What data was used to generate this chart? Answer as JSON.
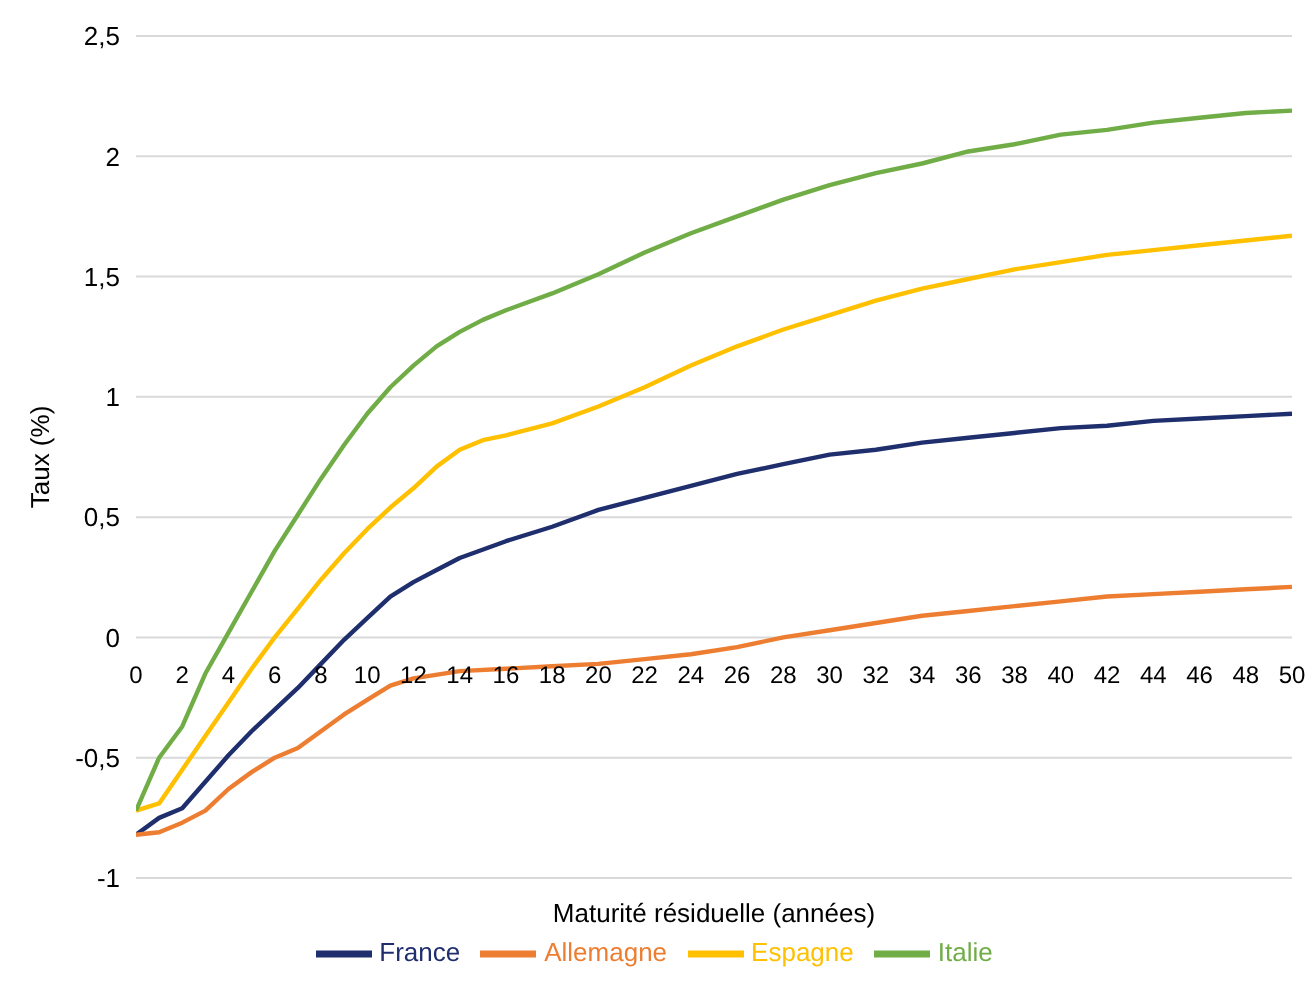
{
  "chart_data": {
    "type": "line",
    "xlabel": "Maturité résiduelle (années)",
    "ylabel": "Taux (%)",
    "xlim": [
      0,
      50
    ],
    "xticks": [
      0,
      2,
      4,
      6,
      8,
      10,
      12,
      14,
      16,
      18,
      20,
      22,
      24,
      26,
      28,
      30,
      32,
      34,
      36,
      38,
      40,
      42,
      44,
      46,
      48,
      50
    ],
    "ylim": [
      -1,
      2.5
    ],
    "yticks": [
      {
        "value": -1,
        "label": "-1"
      },
      {
        "value": -0.5,
        "label": "-0,5"
      },
      {
        "value": 0,
        "label": "0"
      },
      {
        "value": 0.5,
        "label": "0,5"
      },
      {
        "value": 1,
        "label": "1"
      },
      {
        "value": 1.5,
        "label": "1,5"
      },
      {
        "value": 2,
        "label": "2"
      },
      {
        "value": 2.5,
        "label": "2,5"
      }
    ],
    "grid": "y",
    "legend": "bottom",
    "marker": "none",
    "line_style": "solid",
    "series": [
      {
        "name": "France",
        "color": "#1f2f6e",
        "x": [
          0,
          1,
          2,
          3,
          4,
          5,
          6,
          7,
          8,
          9,
          10,
          11,
          12,
          13,
          14,
          16,
          18,
          20,
          22,
          24,
          26,
          28,
          30,
          32,
          34,
          36,
          38,
          40,
          42,
          44,
          46,
          48,
          50
        ],
        "values": [
          -0.82,
          -0.75,
          -0.71,
          -0.6,
          -0.49,
          -0.39,
          -0.3,
          -0.21,
          -0.11,
          -0.01,
          0.08,
          0.17,
          0.23,
          0.28,
          0.33,
          0.4,
          0.46,
          0.53,
          0.58,
          0.63,
          0.68,
          0.72,
          0.76,
          0.78,
          0.81,
          0.83,
          0.85,
          0.87,
          0.88,
          0.9,
          0.91,
          0.92,
          0.93
        ]
      },
      {
        "name": "Allemagne",
        "color": "#ed7d31",
        "x": [
          0,
          1,
          2,
          3,
          4,
          5,
          6,
          7,
          8,
          9,
          10,
          11,
          12,
          14,
          16,
          18,
          20,
          22,
          24,
          26,
          28,
          30,
          32,
          34,
          36,
          38,
          40,
          42,
          44,
          46,
          48,
          50
        ],
        "values": [
          -0.82,
          -0.81,
          -0.77,
          -0.72,
          -0.63,
          -0.56,
          -0.5,
          -0.46,
          -0.39,
          -0.32,
          -0.26,
          -0.2,
          -0.17,
          -0.14,
          -0.13,
          -0.12,
          -0.11,
          -0.09,
          -0.07,
          -0.04,
          0.0,
          0.03,
          0.06,
          0.09,
          0.11,
          0.13,
          0.15,
          0.17,
          0.18,
          0.19,
          0.2,
          0.21
        ]
      },
      {
        "name": "Espagne",
        "color": "#ffc000",
        "x": [
          0,
          1,
          2,
          3,
          4,
          5,
          6,
          7,
          8,
          9,
          10,
          11,
          12,
          13,
          14,
          15,
          16,
          18,
          20,
          22,
          24,
          26,
          28,
          30,
          32,
          34,
          36,
          38,
          40,
          42,
          44,
          46,
          48,
          50
        ],
        "values": [
          -0.72,
          -0.69,
          -0.55,
          -0.41,
          -0.27,
          -0.13,
          0.0,
          0.12,
          0.24,
          0.35,
          0.45,
          0.54,
          0.62,
          0.71,
          0.78,
          0.82,
          0.84,
          0.89,
          0.96,
          1.04,
          1.13,
          1.21,
          1.28,
          1.34,
          1.4,
          1.45,
          1.49,
          1.53,
          1.56,
          1.59,
          1.61,
          1.63,
          1.65,
          1.67
        ]
      },
      {
        "name": "Italie",
        "color": "#70ad47",
        "x": [
          0,
          1,
          2,
          3,
          4,
          5,
          6,
          7,
          8,
          9,
          10,
          11,
          12,
          13,
          14,
          15,
          16,
          18,
          20,
          22,
          24,
          26,
          28,
          30,
          32,
          34,
          36,
          38,
          40,
          42,
          44,
          46,
          48,
          50
        ],
        "values": [
          -0.72,
          -0.5,
          -0.37,
          -0.15,
          0.02,
          0.19,
          0.36,
          0.51,
          0.66,
          0.8,
          0.93,
          1.04,
          1.13,
          1.21,
          1.27,
          1.32,
          1.36,
          1.43,
          1.51,
          1.6,
          1.68,
          1.75,
          1.82,
          1.88,
          1.93,
          1.97,
          2.02,
          2.05,
          2.09,
          2.11,
          2.14,
          2.16,
          2.18,
          2.19
        ]
      }
    ]
  }
}
